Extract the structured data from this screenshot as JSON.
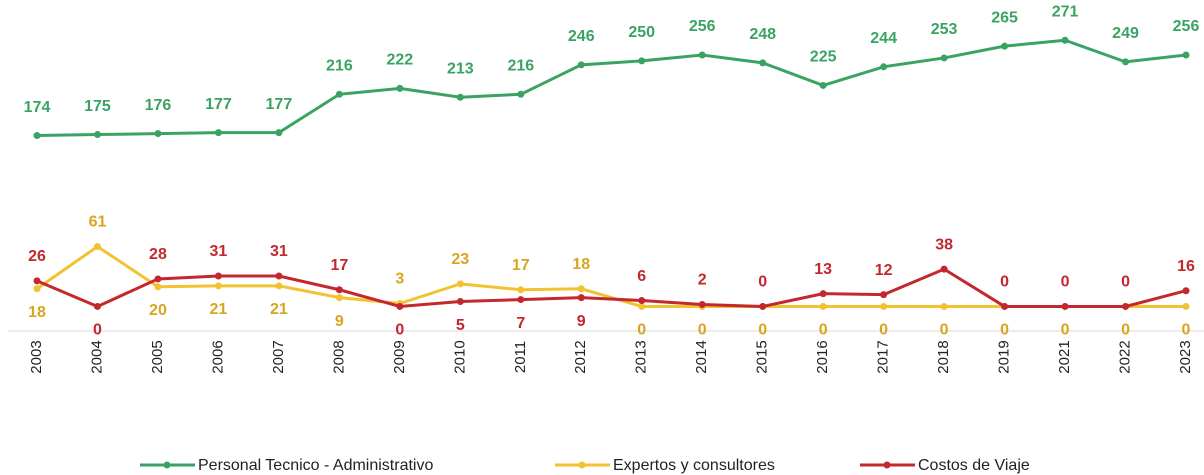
{
  "chart_data": {
    "type": "line",
    "categories": [
      "2003",
      "2004",
      "2005",
      "2006",
      "2007",
      "2008",
      "2009",
      "2010",
      "2011",
      "2012",
      "2013",
      "2014",
      "2015",
      "2016",
      "2017",
      "2018",
      "2019",
      "2021",
      "2022",
      "2023"
    ],
    "series": [
      {
        "name": "Personal Tecnico - Administrativo",
        "color": "#3aa364",
        "values": [
          174,
          175,
          176,
          177,
          177,
          216,
          222,
          213,
          216,
          246,
          250,
          256,
          248,
          225,
          244,
          253,
          265,
          271,
          249,
          256
        ]
      },
      {
        "name": "Expertos y consultores",
        "color": "#f2c230",
        "values": [
          18,
          61,
          20,
          21,
          21,
          9,
          3,
          23,
          17,
          18,
          0,
          0,
          0,
          0,
          0,
          0,
          0,
          0,
          0,
          0
        ]
      },
      {
        "name": "Costos de Viaje",
        "color": "#c3282e",
        "values": [
          26,
          0,
          28,
          31,
          31,
          17,
          0,
          5,
          7,
          9,
          6,
          2,
          0,
          13,
          12,
          38,
          0,
          0,
          0,
          16
        ]
      }
    ],
    "ylim": [
      -25,
      312
    ],
    "legend": "bottom"
  }
}
